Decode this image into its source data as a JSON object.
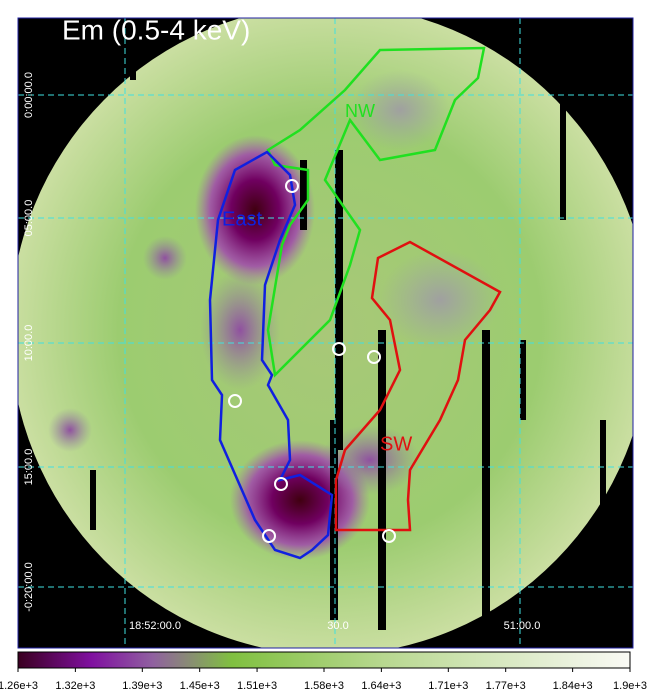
{
  "image": {
    "title": "Em (0.5-4 keV)",
    "regions": [
      "NW",
      "East",
      "SW"
    ],
    "dec_labels": [
      "0:00:00.0",
      "05:00.0",
      "10:00.0",
      "15:00.0",
      "-0:20:00.0"
    ],
    "ra_labels": [
      "18:52:00.0",
      "30.0",
      "51:00.0"
    ]
  },
  "colorbar": {
    "range": [
      1260,
      1900
    ],
    "ticks": [
      {
        "value": 1260,
        "label": "1.26e+3"
      },
      {
        "value": 1320,
        "label": "1.32e+3"
      },
      {
        "value": 1390,
        "label": "1.39e+3"
      },
      {
        "value": 1450,
        "label": "1.45e+3"
      },
      {
        "value": 1510,
        "label": "1.51e+3"
      },
      {
        "value": 1580,
        "label": "1.58e+3"
      },
      {
        "value": 1640,
        "label": "1.64e+3"
      },
      {
        "value": 1710,
        "label": "1.71e+3"
      },
      {
        "value": 1770,
        "label": "1.77e+3"
      },
      {
        "value": 1840,
        "label": "1.84e+3"
      },
      {
        "value": 1900,
        "label": "1.9e+3"
      }
    ]
  }
}
